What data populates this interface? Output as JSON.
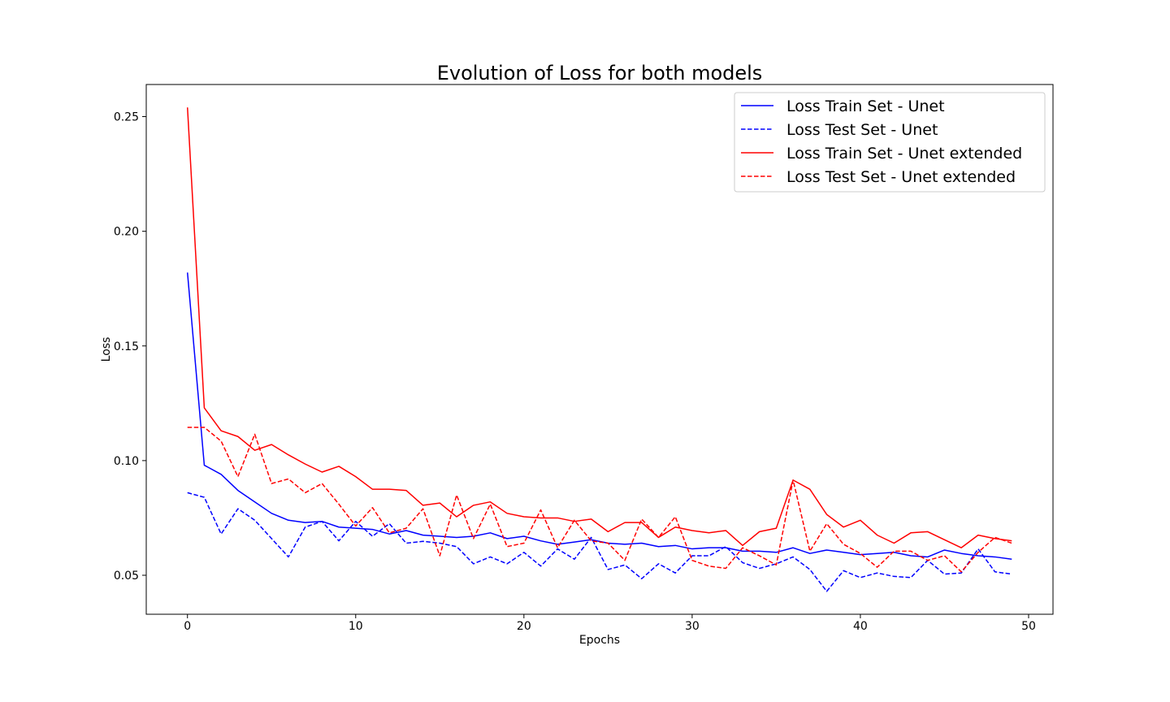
{
  "chart_data": {
    "type": "line",
    "title": "Evolution of Loss for both models",
    "xlabel": "Epochs",
    "ylabel": "Loss",
    "xlim": [
      -2.45,
      51.45
    ],
    "ylim": [
      0.033,
      0.264
    ],
    "xticks": [
      0,
      10,
      20,
      30,
      40,
      50
    ],
    "yticks": [
      0.05,
      0.1,
      0.15,
      0.2,
      0.25
    ],
    "ytick_labels": [
      "0.05",
      "0.10",
      "0.15",
      "0.20",
      "0.25"
    ],
    "grid": false,
    "legend_position": "top-right",
    "x": [
      0,
      1,
      2,
      3,
      4,
      5,
      6,
      7,
      8,
      9,
      10,
      11,
      12,
      13,
      14,
      15,
      16,
      17,
      18,
      19,
      20,
      21,
      22,
      23,
      24,
      25,
      26,
      27,
      28,
      29,
      30,
      31,
      32,
      33,
      34,
      35,
      36,
      37,
      38,
      39,
      40,
      41,
      42,
      43,
      44,
      45,
      46,
      47,
      48,
      49
    ],
    "series": [
      {
        "name": "Loss Train Set - Unet",
        "color": "#0000ff",
        "linestyle": "solid",
        "values": [
          0.182,
          0.098,
          0.094,
          0.087,
          0.082,
          0.077,
          0.074,
          0.073,
          0.0735,
          0.071,
          0.0705,
          0.07,
          0.068,
          0.0695,
          0.0675,
          0.067,
          0.0665,
          0.067,
          0.0685,
          0.066,
          0.067,
          0.065,
          0.0635,
          0.0645,
          0.0655,
          0.064,
          0.0635,
          0.064,
          0.0625,
          0.063,
          0.0615,
          0.062,
          0.062,
          0.0605,
          0.0605,
          0.06,
          0.062,
          0.0595,
          0.061,
          0.06,
          0.059,
          0.0595,
          0.06,
          0.0585,
          0.058,
          0.061,
          0.0595,
          0.0585,
          0.058,
          0.057
        ]
      },
      {
        "name": "Loss Test Set - Unet",
        "color": "#0000ff",
        "linestyle": "dashed",
        "values": [
          0.086,
          0.084,
          0.068,
          0.079,
          0.074,
          0.066,
          0.058,
          0.071,
          0.0735,
          0.065,
          0.0735,
          0.067,
          0.0725,
          0.064,
          0.0648,
          0.064,
          0.0625,
          0.055,
          0.058,
          0.055,
          0.06,
          0.054,
          0.0615,
          0.057,
          0.0665,
          0.0525,
          0.0545,
          0.0485,
          0.055,
          0.051,
          0.0585,
          0.0585,
          0.0625,
          0.0555,
          0.053,
          0.055,
          0.058,
          0.0525,
          0.043,
          0.052,
          0.049,
          0.051,
          0.0495,
          0.049,
          0.0565,
          0.0505,
          0.051,
          0.0615,
          0.0515,
          0.0505
        ]
      },
      {
        "name": "Loss Train Set - Unet extended",
        "color": "#ff0000",
        "linestyle": "solid",
        "values": [
          0.254,
          0.123,
          0.113,
          0.1105,
          0.1045,
          0.107,
          0.1025,
          0.0985,
          0.095,
          0.0975,
          0.093,
          0.0875,
          0.0875,
          0.087,
          0.0805,
          0.0815,
          0.0755,
          0.0805,
          0.082,
          0.077,
          0.0755,
          0.075,
          0.075,
          0.0735,
          0.0745,
          0.069,
          0.073,
          0.073,
          0.0665,
          0.071,
          0.0695,
          0.0685,
          0.0695,
          0.063,
          0.069,
          0.0705,
          0.0915,
          0.0875,
          0.0765,
          0.071,
          0.074,
          0.0675,
          0.064,
          0.0685,
          0.069,
          0.0655,
          0.062,
          0.0675,
          0.066,
          0.065
        ]
      },
      {
        "name": "Loss Test Set - Unet extended",
        "color": "#ff0000",
        "linestyle": "dashed",
        "values": [
          0.1145,
          0.1145,
          0.1085,
          0.093,
          0.1115,
          0.09,
          0.092,
          0.086,
          0.09,
          0.081,
          0.0715,
          0.0795,
          0.0685,
          0.0705,
          0.079,
          0.0585,
          0.085,
          0.066,
          0.081,
          0.0625,
          0.064,
          0.0785,
          0.062,
          0.074,
          0.065,
          0.064,
          0.0565,
          0.0745,
          0.0665,
          0.0755,
          0.0565,
          0.054,
          0.053,
          0.062,
          0.0585,
          0.0545,
          0.0915,
          0.0605,
          0.0725,
          0.0635,
          0.0595,
          0.0535,
          0.0605,
          0.0605,
          0.0565,
          0.0585,
          0.0515,
          0.06,
          0.0665,
          0.064
        ]
      }
    ]
  }
}
